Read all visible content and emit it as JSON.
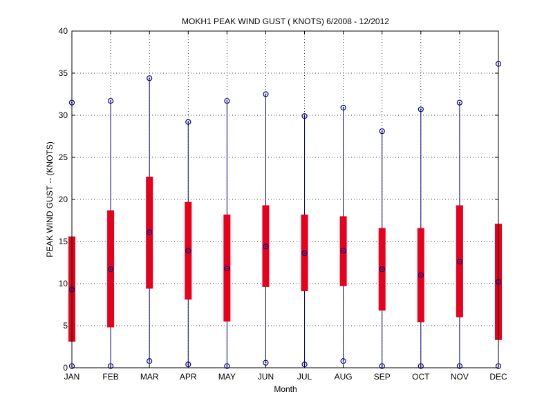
{
  "chart_data": {
    "type": "boxplot",
    "title": "MOKH1  PEAK WIND GUST ( KNOTS) 6/2008 - 12/2012",
    "xlabel": "Month",
    "ylabel": "PEAK WIND GUST -- (KNOTS)",
    "ylim": [
      0,
      40
    ],
    "yticks": [
      0,
      5,
      10,
      15,
      20,
      25,
      30,
      35,
      40
    ],
    "grid": true,
    "categories": [
      "JAN",
      "FEB",
      "MAR",
      "APR",
      "MAY",
      "JUN",
      "JUL",
      "AUG",
      "SEP",
      "OCT",
      "NOV",
      "DEC"
    ],
    "series": [
      {
        "min": 0.2,
        "q1": 3.1,
        "median": 9.3,
        "q3": 15.6,
        "max": 31.5
      },
      {
        "min": 0.2,
        "q1": 4.8,
        "median": 11.7,
        "q3": 18.7,
        "max": 31.7
      },
      {
        "min": 0.8,
        "q1": 9.4,
        "median": 16.1,
        "q3": 22.7,
        "max": 34.4
      },
      {
        "min": 0.4,
        "q1": 8.1,
        "median": 13.9,
        "q3": 19.7,
        "max": 29.2
      },
      {
        "min": 0.2,
        "q1": 5.5,
        "median": 11.8,
        "q3": 18.2,
        "max": 31.7
      },
      {
        "min": 0.6,
        "q1": 9.6,
        "median": 14.4,
        "q3": 19.3,
        "max": 32.5
      },
      {
        "min": 0.4,
        "q1": 9.1,
        "median": 13.6,
        "q3": 18.2,
        "max": 29.9
      },
      {
        "min": 0.8,
        "q1": 9.7,
        "median": 13.9,
        "q3": 18.0,
        "max": 30.9
      },
      {
        "min": 0.2,
        "q1": 6.8,
        "median": 11.7,
        "q3": 16.6,
        "max": 28.1
      },
      {
        "min": 0.2,
        "q1": 5.4,
        "median": 11.0,
        "q3": 16.6,
        "max": 30.7
      },
      {
        "min": 0.2,
        "q1": 6.0,
        "median": 12.6,
        "q3": 19.3,
        "max": 31.5
      },
      {
        "min": 0.2,
        "q1": 3.3,
        "median": 10.2,
        "q3": 17.1,
        "max": 36.1
      }
    ],
    "colors": {
      "box": "#e8001c",
      "whisker": "#00008b",
      "marker": "#00008b"
    }
  }
}
